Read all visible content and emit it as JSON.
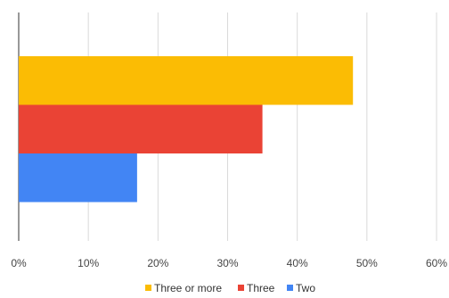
{
  "chart_data": {
    "type": "bar",
    "orientation": "horizontal",
    "categories": [
      ""
    ],
    "series": [
      {
        "name": "Three or more",
        "values": [
          48
        ],
        "color": "#FBBC04"
      },
      {
        "name": "Three",
        "values": [
          35
        ],
        "color": "#EA4335"
      },
      {
        "name": "Two",
        "values": [
          17
        ],
        "color": "#4285F4"
      }
    ],
    "title": "",
    "xlabel": "",
    "ylabel": "",
    "xlim": [
      0,
      60
    ],
    "x_ticks": [
      0,
      10,
      20,
      30,
      40,
      50,
      60
    ],
    "x_tick_labels": [
      "0%",
      "10%",
      "20%",
      "30%",
      "40%",
      "50%",
      "60%"
    ],
    "grid": true,
    "legend_position": "bottom",
    "gridline_color": "#dadada"
  }
}
